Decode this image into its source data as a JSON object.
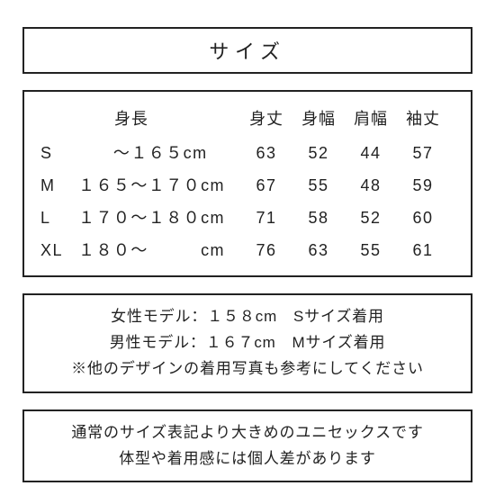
{
  "colors": {
    "border": "#222222",
    "text": "#222222",
    "background": "#ffffff"
  },
  "typography": {
    "title_fontsize": 22,
    "body_fontsize": 18,
    "note_fontsize": 17
  },
  "title": "サイズ",
  "table": {
    "type": "table",
    "columns": [
      "",
      "身長",
      "身丈",
      "身幅",
      "肩幅",
      "袖丈"
    ],
    "rows": [
      {
        "size": "S",
        "height": "　　～１６５cm",
        "mitake": "63",
        "mihaba": "52",
        "katahaba": "44",
        "sodetake": "57"
      },
      {
        "size": "M",
        "height": "１６５～１７０cm",
        "mitake": "67",
        "mihaba": "55",
        "katahaba": "48",
        "sodetake": "59"
      },
      {
        "size": "L",
        "height": "１７０～１８０cm",
        "mitake": "71",
        "mihaba": "58",
        "katahaba": "52",
        "sodetake": "60"
      },
      {
        "size": "XL",
        "height": "１８０～　　　cm",
        "mitake": "76",
        "mihaba": "63",
        "katahaba": "55",
        "sodetake": "61"
      }
    ]
  },
  "model_note": {
    "line1": "女性モデル：１５８cm　Sサイズ着用",
    "line2": "男性モデル：１６７cm　Mサイズ着用",
    "line3": "※他のデザインの着用写真も参考にしてください"
  },
  "fit_note": {
    "line1": "通常のサイズ表記より大きめのユニセックスです",
    "line2": "体型や着用感には個人差があります"
  }
}
